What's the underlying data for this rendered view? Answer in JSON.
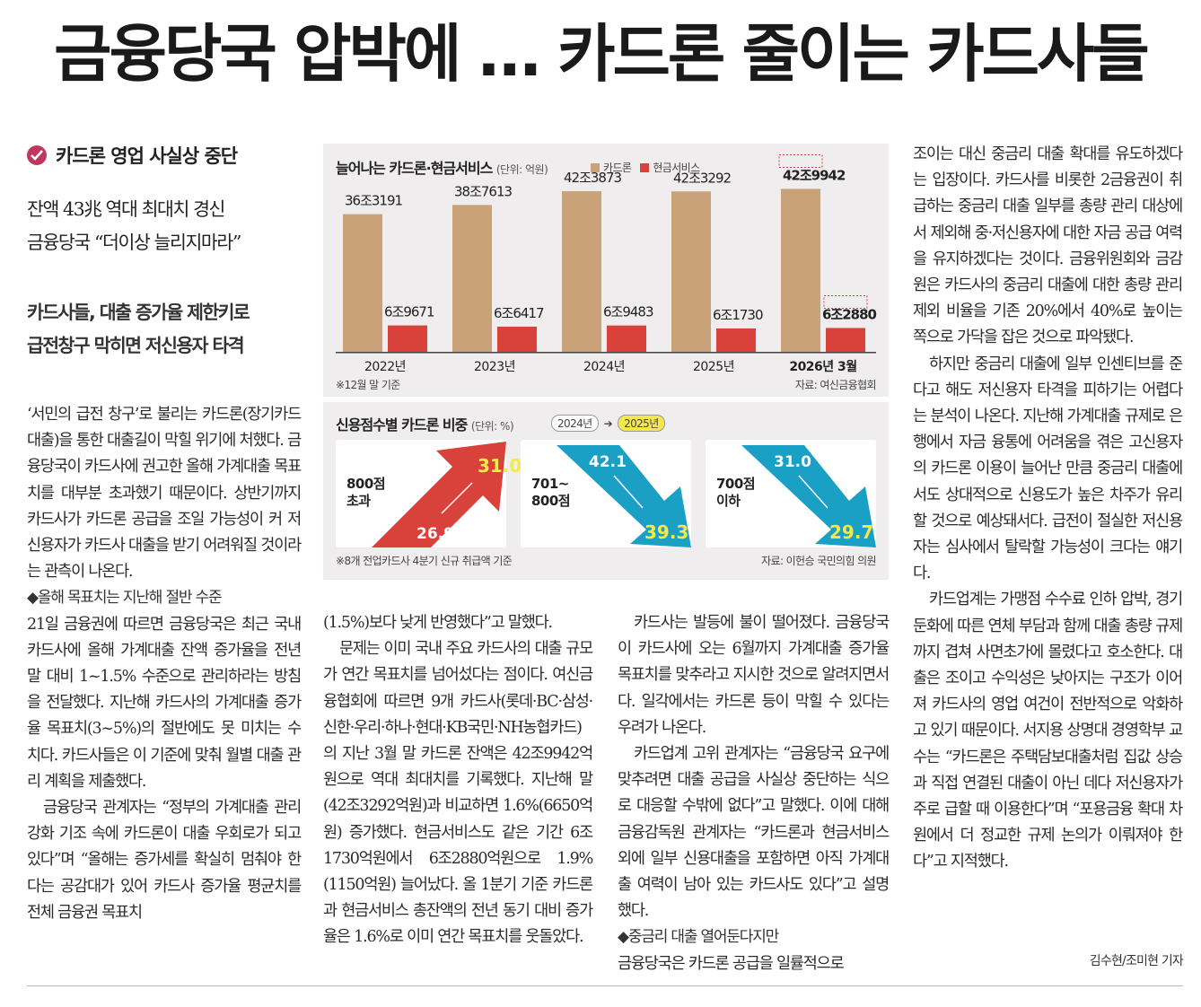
{
  "headline": "금융당국 압박에 … 카드론 줄이는 카드사들",
  "kicker": "카드론 영업 사실상 중단",
  "deck": {
    "line1": "잔액 43兆 역대 최대치 경신",
    "line2": "금융당국 “더이상 늘리지마라”",
    "line3": "카드사들, 대출 증가율 제한키로",
    "line4": "급전창구 막히면 저신용자 타격"
  },
  "graphic": {
    "bar_title": "늘어나는 카드론·현금서비스",
    "bar_unit": "(단위: 억원)",
    "legend_card": "카드론",
    "legend_cash": "현금서비스",
    "bar_note": "※12월 말 기준",
    "bar_source": "자료: 여신금융협회",
    "ratio_title": "신용점수별 카드론 비중",
    "ratio_unit": "(단위: %)",
    "year_from": "2024년",
    "year_to": "2025년",
    "ratio_note": "※8개 전업카드사 4분기 신규 취급액 기준",
    "ratio_source": "자료: 이헌승 국민의힘 의원"
  },
  "chart_data": [
    {
      "type": "bar",
      "title": "늘어나는 카드론·현금서비스",
      "unit": "억원",
      "categories": [
        "2022년",
        "2023년",
        "2024년",
        "2025년",
        "2026년 3월"
      ],
      "series": [
        {
          "name": "카드론",
          "values": [
            363191,
            387613,
            423873,
            423292,
            429942
          ],
          "labels": [
            "36조3191",
            "38조7613",
            "42조3873",
            "42조3292",
            "42조9942"
          ],
          "color": "#c9a27a"
        },
        {
          "name": "현금서비스",
          "values": [
            69671,
            66417,
            69483,
            61730,
            62880
          ],
          "labels": [
            "6조9671",
            "6조6417",
            "6조9483",
            "6조1730",
            "6조2880"
          ],
          "color": "#d9413b"
        }
      ]
    },
    {
      "type": "arrow",
      "title": "신용점수별 카드론 비중",
      "unit": "%",
      "groups": [
        {
          "name": "800점 초과",
          "from": "26.9",
          "to": "31.0",
          "direction": "up",
          "color": "#d9413b"
        },
        {
          "name": "701~ 800점",
          "from": "42.1",
          "to": "39.3",
          "direction": "down",
          "color": "#1aa0c4"
        },
        {
          "name": "700점 이하",
          "from": "31.0",
          "to": "29.7",
          "direction": "down",
          "color": "#1aa0c4"
        }
      ]
    }
  ],
  "col1": [
    "‘서민의 급전 창구’로 불리는 카드론(장기카드대출)을 통한 대출길이 막힐 위기에 처했다. 금융당국이 카드사에 권고한 올해 가계대출 목표치를 대부분 초과했기 때문이다. 상반기까지 카드사가 카드론 공급을 조일 가능성이 커 저신용자가 카드사 대출을 받기 어려워질 것이라는 관측이 나온다.",
    "◆올해 목표치는 지난해 절반 수준",
    "21일 금융권에 따르면 금융당국은 최근 국내 카드사에 올해 가계대출 잔액 증가율을 전년 말 대비 1~1.5% 수준으로 관리하라는 방침을 전달했다. 지난해 카드사의 가계대출 증가율 목표치(3~5%)의 절반에도 못 미치는 수치다. 카드사들은 이 기준에 맞춰 월별 대출 관리 계획을 제출했다.",
    "금융당국 관계자는 “정부의 가계대출 관리 강화 기조 속에 카드론이 대출 우회로가 되고 있다”며 “올해는 증가세를 확실히 멈춰야 한다는 공감대가 있어 카드사 증가율 평균치를 전체 금융권 목표치"
  ],
  "col2": [
    "(1.5%)보다 낮게 반영했다”고 말했다.",
    "문제는 이미 국내 주요 카드사의 대출 규모가 연간 목표치를 넘어섰다는 점이다. 여신금융협회에 따르면 9개 카드사(롯데·BC·삼성·신한·우리·하나·현대·KB국민·NH농협카드)의 지난 3월 말 카드론 잔액은 42조9942억원으로 역대 최대치를 기록했다. 지난해 말(42조3292억원)과 비교하면 1.6%(6650억원) 증가했다. 현금서비스도 같은 기간 6조1730억원에서 6조2880억원으로 1.9%(1150억원) 늘어났다. 올 1분기 기준 카드론과 현금서비스 총잔액의 전년 동기 대비 증가율은 1.6%로 이미 연간 목표치를 웃돌았다."
  ],
  "col3": [
    "카드사는 발등에 불이 떨어졌다. 금융당국이 카드사에 오는 6월까지 가계대출 증가율 목표치를 맞추라고 지시한 것으로 알려지면서다. 일각에서는 카드론 등이 막힐 수 있다는 우려가 나온다.",
    "카드업계 고위 관계자는 “금융당국 요구에 맞추려면 대출 공급을 사실상 중단하는 식으로 대응할 수밖에 없다”고 말했다. 이에 대해 금융감독원 관계자는 “카드론과 현금서비스 외에 일부 신용대출을 포함하면 아직 가계대출 여력이 남아 있는 카드사도 있다”고 설명했다.",
    "◆중금리 대출 열어둔다지만",
    "금융당국은 카드론 공급을 일률적으로"
  ],
  "col4": [
    "조이는 대신 중금리 대출 확대를 유도하겠다는 입장이다. 카드사를 비롯한 2금융권이 취급하는 중금리 대출 일부를 총량 관리 대상에서 제외해 중·저신용자에 대한 자금 공급 여력을 유지하겠다는 것이다. 금융위원회와 금감원은 카드사의 중금리 대출에 대한 총량 관리 제외 비율을 기존 20%에서 40%로 높이는 쪽으로 가닥을 잡은 것으로 파악됐다.",
    "하지만 중금리 대출에 일부 인센티브를 준다고 해도 저신용자 타격을 피하기는 어렵다는 분석이 나온다. 지난해 가계대출 규제로 은행에서 자금 융통에 어려움을 겪은 고신용자의 카드론 이용이 늘어난 만큼 중금리 대출에서도 상대적으로 신용도가 높은 차주가 유리할 것으로 예상돼서다. 급전이 절실한 저신용자는 심사에서 탈락할 가능성이 크다는 얘기다.",
    "카드업계는 가맹점 수수료 인하 압박, 경기 둔화에 따른 연체 부담과 함께 대출 총량 규제까지 겹쳐 사면초가에 몰렸다고 호소한다. 대출은 조이고 수익성은 낮아지는 구조가 이어져 카드사의 영업 여건이 전반적으로 악화하고 있기 때문이다. 서지용 상명대 경영학부 교수는 “카드론은 주택담보대출처럼 집값 상승과 직접 연결된 대출이 아닌 데다 저신용자가 주로 급할 때 이용한다”며 “포용금융 확대 차원에서 더 정교한 규제 논의가 이뤄져야 한다”고 지적했다."
  ],
  "byline": "김수현/조미현 기자"
}
